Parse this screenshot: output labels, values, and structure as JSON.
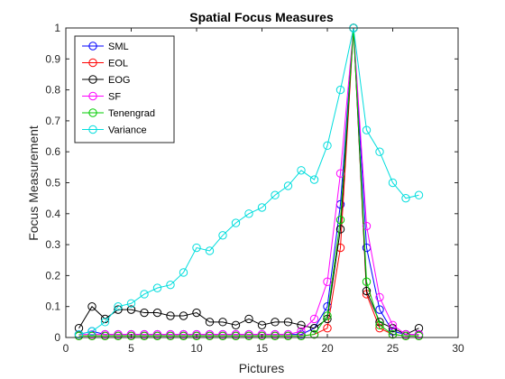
{
  "chart_data": {
    "type": "line",
    "title": "Spatial Focus Measures",
    "xlabel": "Pictures",
    "ylabel": "Focus Measurement",
    "xlim": [
      0,
      30
    ],
    "ylim": [
      0,
      1
    ],
    "xticks": [
      0,
      5,
      10,
      15,
      20,
      25,
      30
    ],
    "yticks": [
      0,
      0.1,
      0.2,
      0.3,
      0.4,
      0.5,
      0.6,
      0.7,
      0.8,
      0.9,
      1
    ],
    "grid": false,
    "legend_position": "top-left",
    "marker": "circle",
    "x": [
      1,
      2,
      3,
      4,
      5,
      6,
      7,
      8,
      9,
      10,
      11,
      12,
      13,
      14,
      15,
      16,
      17,
      18,
      19,
      20,
      21,
      22,
      23,
      24,
      25,
      26,
      27
    ],
    "series": [
      {
        "name": "SML",
        "color": "#0000ff",
        "values": [
          0.01,
          0.02,
          0.01,
          0.01,
          0.01,
          0.01,
          0.01,
          0.01,
          0.01,
          0.01,
          0.01,
          0.01,
          0.01,
          0.01,
          0.01,
          0.01,
          0.01,
          0.01,
          0.03,
          0.1,
          0.43,
          1.0,
          0.29,
          0.09,
          0.02,
          0.01,
          0.01
        ]
      },
      {
        "name": "EOL",
        "color": "#ff0000",
        "values": [
          0.005,
          0.005,
          0.005,
          0.005,
          0.005,
          0.005,
          0.005,
          0.005,
          0.005,
          0.005,
          0.005,
          0.005,
          0.005,
          0.005,
          0.005,
          0.005,
          0.005,
          0.005,
          0.01,
          0.03,
          0.29,
          1.0,
          0.14,
          0.03,
          0.01,
          0.005,
          0.005
        ]
      },
      {
        "name": "EOG",
        "color": "#000000",
        "values": [
          0.03,
          0.1,
          0.06,
          0.09,
          0.09,
          0.08,
          0.08,
          0.07,
          0.07,
          0.08,
          0.05,
          0.05,
          0.04,
          0.06,
          0.04,
          0.05,
          0.05,
          0.04,
          0.03,
          0.06,
          0.35,
          1.0,
          0.15,
          0.05,
          0.03,
          0.01,
          0.03
        ]
      },
      {
        "name": "SF",
        "color": "#ff00ff",
        "values": [
          0.01,
          0.01,
          0.01,
          0.01,
          0.01,
          0.01,
          0.01,
          0.01,
          0.01,
          0.01,
          0.01,
          0.01,
          0.01,
          0.01,
          0.01,
          0.01,
          0.01,
          0.02,
          0.06,
          0.18,
          0.53,
          1.0,
          0.36,
          0.13,
          0.04,
          0.01,
          0.01
        ]
      },
      {
        "name": "Tenengrad",
        "color": "#00cc00",
        "values": [
          0.005,
          0.005,
          0.005,
          0.005,
          0.005,
          0.005,
          0.005,
          0.005,
          0.005,
          0.005,
          0.005,
          0.005,
          0.005,
          0.005,
          0.005,
          0.005,
          0.005,
          0.005,
          0.01,
          0.07,
          0.38,
          1.0,
          0.18,
          0.04,
          0.01,
          0.005,
          0.005
        ]
      },
      {
        "name": "Variance",
        "color": "#00dddd",
        "values": [
          0.01,
          0.02,
          0.05,
          0.1,
          0.11,
          0.14,
          0.16,
          0.17,
          0.21,
          0.29,
          0.28,
          0.33,
          0.37,
          0.4,
          0.42,
          0.46,
          0.49,
          0.54,
          0.51,
          0.62,
          0.8,
          1.0,
          0.67,
          0.6,
          0.5,
          0.45,
          0.46
        ]
      }
    ]
  }
}
